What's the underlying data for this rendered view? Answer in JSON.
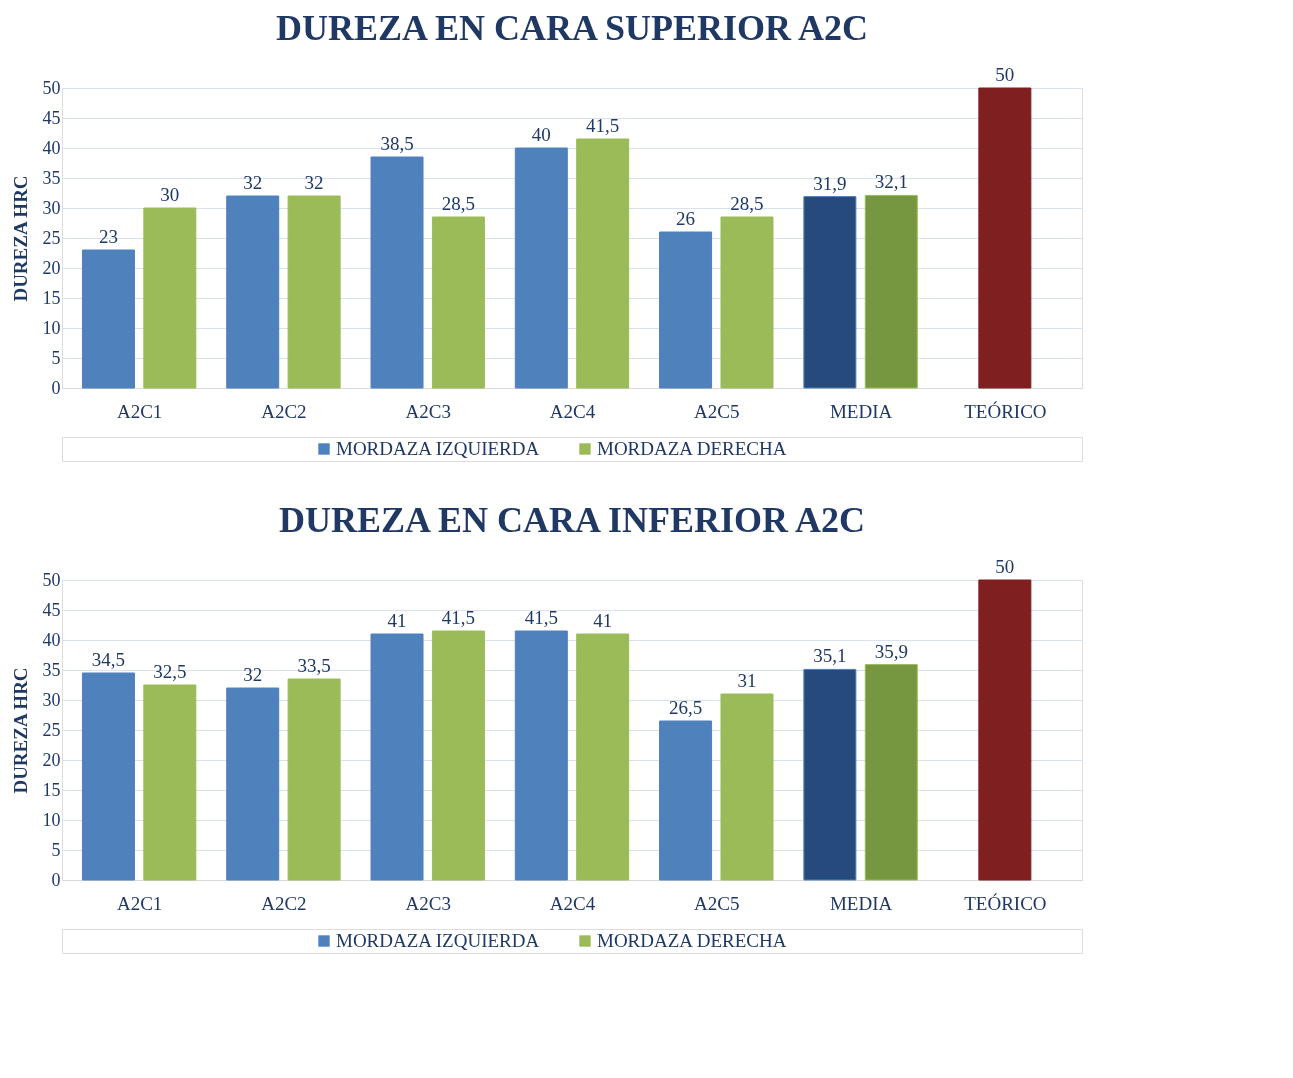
{
  "chart_data": [
    {
      "type": "bar",
      "title": "DUREZA EN CARA SUPERIOR A2C",
      "ylabel": "DUREZA HRC",
      "categories": [
        "A2C1",
        "A2C2",
        "A2C3",
        "A2C4",
        "A2C5",
        "MEDIA",
        "TEÓRICO"
      ],
      "series": [
        {
          "name": "MORDAZA IZQUIERDA",
          "color": "#4f81bd",
          "colors": [
            "#4f81bd",
            "#4f81bd",
            "#4f81bd",
            "#4f81bd",
            "#4f81bd",
            "#254a7b",
            null
          ],
          "values": [
            23,
            32,
            38.5,
            40,
            26,
            31.9,
            null
          ],
          "value_labels": [
            "23",
            "32",
            "38,5",
            "40",
            "26",
            "31,9",
            null
          ]
        },
        {
          "name": "MORDAZA DERECHA",
          "color": "#9bbb59",
          "colors": [
            "#9bbb59",
            "#9bbb59",
            "#9bbb59",
            "#9bbb59",
            "#9bbb59",
            "#76973f",
            null
          ],
          "values": [
            30,
            32,
            28.5,
            41.5,
            28.5,
            32.1,
            null
          ],
          "value_labels": [
            "30",
            "32",
            "28,5",
            "41,5",
            "28,5",
            "32,1",
            null
          ]
        },
        {
          "color": "#7f1f1f",
          "colors": [
            null,
            null,
            null,
            null,
            null,
            null,
            "#7f1f1f"
          ],
          "values": [
            null,
            null,
            null,
            null,
            null,
            null,
            50
          ],
          "value_labels": [
            null,
            null,
            null,
            null,
            null,
            null,
            "50"
          ]
        }
      ],
      "ylim": [
        0,
        50
      ],
      "yticks": [
        0,
        5,
        10,
        15,
        20,
        25,
        30,
        35,
        40,
        45,
        50
      ],
      "grid": "y",
      "legend": "bottom"
    },
    {
      "type": "bar",
      "title": "DUREZA EN CARA INFERIOR A2C",
      "ylabel": "DUREZA HRC",
      "categories": [
        "A2C1",
        "A2C2",
        "A2C3",
        "A2C4",
        "A2C5",
        "MEDIA",
        "TEÓRICO"
      ],
      "series": [
        {
          "name": "MORDAZA IZQUIERDA",
          "color": "#4f81bd",
          "colors": [
            "#4f81bd",
            "#4f81bd",
            "#4f81bd",
            "#4f81bd",
            "#4f81bd",
            "#254a7b",
            null
          ],
          "values": [
            34.5,
            32,
            41,
            41.5,
            26.5,
            35.1,
            null
          ],
          "value_labels": [
            "34,5",
            "32",
            "41",
            "41,5",
            "26,5",
            "35,1",
            null
          ]
        },
        {
          "name": "MORDAZA DERECHA",
          "color": "#9bbb59",
          "colors": [
            "#9bbb59",
            "#9bbb59",
            "#9bbb59",
            "#9bbb59",
            "#9bbb59",
            "#76973f",
            null
          ],
          "values": [
            32.5,
            33.5,
            41.5,
            41,
            31,
            35.9,
            null
          ],
          "value_labels": [
            "32,5",
            "33,5",
            "41,5",
            "41",
            "31",
            "35,9",
            null
          ]
        },
        {
          "color": "#7f1f1f",
          "colors": [
            null,
            null,
            null,
            null,
            null,
            null,
            "#7f1f1f"
          ],
          "values": [
            null,
            null,
            null,
            null,
            null,
            null,
            50
          ],
          "value_labels": [
            null,
            null,
            null,
            null,
            null,
            null,
            "50"
          ]
        }
      ],
      "ylim": [
        0,
        50
      ],
      "yticks": [
        0,
        5,
        10,
        15,
        20,
        25,
        30,
        35,
        40,
        45,
        50
      ],
      "grid": "y",
      "legend": "bottom"
    }
  ]
}
